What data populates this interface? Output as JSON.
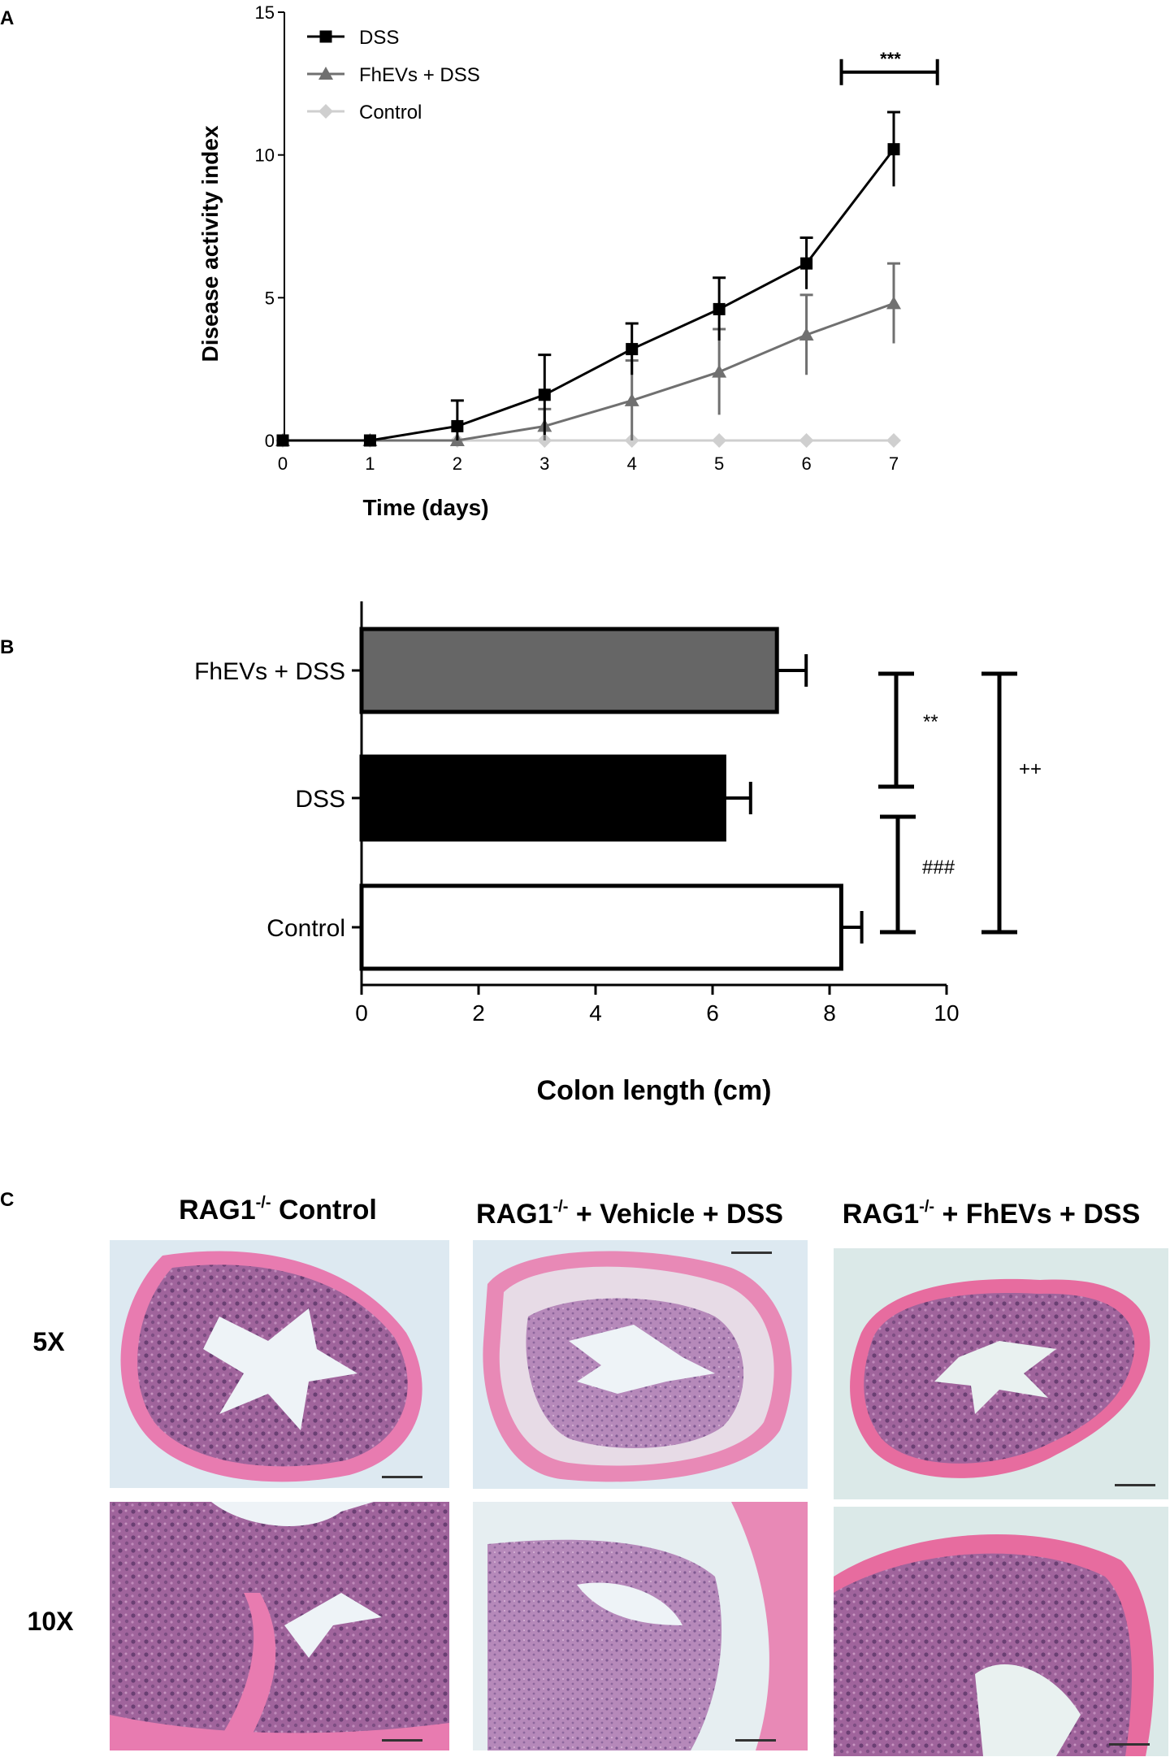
{
  "panels": {
    "a": {
      "letter": "A"
    },
    "b": {
      "letter": "B"
    },
    "c": {
      "letter": "C"
    }
  },
  "chart_data": [
    {
      "type": "line",
      "panel": "A",
      "xlabel": "Time (days)",
      "ylabel": "Disease activity index",
      "x": [
        0,
        1,
        2,
        3,
        4,
        5,
        6,
        7
      ],
      "xlim": [
        0,
        7
      ],
      "ylim": [
        0,
        15
      ],
      "xticks": [
        "0",
        "1",
        "2",
        "3",
        "4",
        "5",
        "6",
        "7"
      ],
      "yticks": [
        "0",
        "5",
        "10",
        "15"
      ],
      "legend_position": "top-left",
      "series": [
        {
          "name": "DSS",
          "marker": "square",
          "color": "#000000",
          "values": [
            0,
            0,
            0.5,
            1.6,
            3.2,
            4.6,
            6.2,
            10.2
          ],
          "errors": [
            0,
            0,
            0.9,
            1.4,
            0.9,
            1.1,
            0.9,
            1.3
          ]
        },
        {
          "name": "FhEVs + DSS",
          "marker": "triangle",
          "color": "#707070",
          "values": [
            0,
            0,
            0,
            0.5,
            1.4,
            2.4,
            3.7,
            4.8
          ],
          "errors": [
            0,
            0,
            0,
            0.6,
            1.4,
            1.5,
            1.4,
            1.4
          ]
        },
        {
          "name": "Control",
          "marker": "diamond",
          "color": "#cfcfcf",
          "values": [
            0,
            0,
            0,
            0,
            0,
            0,
            0,
            0
          ],
          "errors": [
            0,
            0,
            0,
            0,
            0,
            0,
            0,
            0
          ]
        }
      ],
      "annotation": {
        "label": "***",
        "x_range": [
          6.4,
          7.5
        ],
        "y": 12.9
      }
    },
    {
      "type": "bar",
      "orientation": "horizontal",
      "panel": "B",
      "xlabel": "Colon length (cm)",
      "xlim": [
        0,
        10
      ],
      "xticks": [
        "0",
        "2",
        "4",
        "6",
        "8",
        "10"
      ],
      "categories": [
        "FhEVs + DSS",
        "DSS",
        "Control"
      ],
      "values": [
        7.1,
        6.2,
        8.2
      ],
      "errors": [
        0.5,
        0.45,
        0.35
      ],
      "colors": [
        "#666666",
        "#000000",
        "#ffffff"
      ],
      "significance": [
        {
          "label": "**",
          "between": [
            "FhEVs + DSS",
            "DSS"
          ]
        },
        {
          "label": "###",
          "between": [
            "DSS",
            "Control"
          ]
        },
        {
          "label": "++",
          "between": [
            "FhEVs + DSS",
            "Control"
          ]
        }
      ]
    }
  ],
  "histology": {
    "columns": [
      {
        "prefix": "RAG1",
        "sup": "-/-",
        "suffix": " Control"
      },
      {
        "prefix": "RAG1",
        "sup": "-/-",
        "suffix": " + Vehicle + DSS"
      },
      {
        "prefix": "RAG1",
        "sup": "-/-",
        "suffix": " + FhEVs + DSS"
      }
    ],
    "rows": [
      "5X",
      "10X"
    ]
  }
}
